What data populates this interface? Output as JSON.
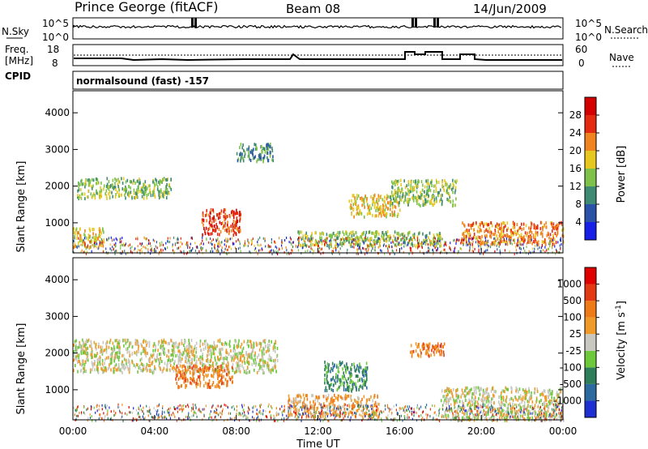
{
  "header": {
    "station": "Prince George (fitACF)",
    "beam": "Beam 08",
    "date": "14/Jun/2009"
  },
  "noise_panel": {
    "left_label": "N.Sky",
    "right_label": "N.Search",
    "left_ticks": [
      "10^5",
      "10^0"
    ],
    "right_ticks": [
      "10^5",
      "10^0"
    ]
  },
  "freq_panel": {
    "left_label_1": "Freq.",
    "left_label_2": "[MHz]",
    "right_label": "Nave",
    "left_ticks": [
      "18",
      "8"
    ],
    "right_ticks": [
      "60",
      "0"
    ],
    "cpid_label": "CPID",
    "mode_text": "normalsound (fast) -157"
  },
  "x_axis": {
    "label": "Time UT",
    "ticks": [
      "00:00",
      "04:00",
      "08:00",
      "12:00",
      "16:00",
      "20:00",
      "00:00"
    ]
  },
  "chart_data": [
    {
      "type": "heatmap",
      "name": "power-panel",
      "ylabel": "Slant Range [km]",
      "ylim": [
        180,
        4600
      ],
      "yticks": [
        1000,
        2000,
        3000,
        4000
      ],
      "xlim": [
        0,
        24
      ],
      "colorbar": {
        "label": "Power [dB]",
        "ticks": [
          "4",
          "8",
          "12",
          "16",
          "20",
          "24",
          "28"
        ],
        "colors": [
          "#1820e8",
          "#2a52a8",
          "#3f8a72",
          "#7fc24a",
          "#e6c821",
          "#ef8420",
          "#e52a12",
          "#d40000"
        ]
      },
      "regions": [
        {
          "t0": 0.2,
          "t1": 4.8,
          "r0": 1700,
          "r1": 2250,
          "level": 3
        },
        {
          "t0": 0.0,
          "t1": 1.5,
          "r0": 350,
          "r1": 900,
          "level": 4
        },
        {
          "t0": 6.3,
          "t1": 8.2,
          "r0": 700,
          "r1": 1400,
          "level": 6
        },
        {
          "t0": 8.0,
          "t1": 9.8,
          "r0": 2700,
          "r1": 3200,
          "level": 2
        },
        {
          "t0": 13.5,
          "t1": 16.0,
          "r0": 1200,
          "r1": 1800,
          "level": 4
        },
        {
          "t0": 15.5,
          "t1": 18.8,
          "r0": 1500,
          "r1": 2200,
          "level": 3
        },
        {
          "t0": 19.0,
          "t1": 24.0,
          "r0": 450,
          "r1": 1050,
          "level": 5
        },
        {
          "t0": 11.0,
          "t1": 18.0,
          "r0": 400,
          "r1": 800,
          "level": 3
        }
      ]
    },
    {
      "type": "heatmap",
      "name": "velocity-panel",
      "ylabel": "Slant Range [km]",
      "ylim": [
        180,
        4600
      ],
      "yticks": [
        1000,
        2000,
        3000,
        4000
      ],
      "xlim": [
        0,
        24
      ],
      "colorbar": {
        "label": "Velocity [m s",
        "superscript": "-1",
        "label_end": "]",
        "ticks": [
          "1000",
          "500",
          "100",
          "25",
          "-25",
          "-100",
          "-500",
          "-1000"
        ],
        "colors": [
          "#1f2fd2",
          "#2d6aa0",
          "#2e7e5a",
          "#6ec83c",
          "#c8c8c0",
          "#f09a2a",
          "#ef7a18",
          "#e43a14",
          "#e00000"
        ]
      },
      "regions": [
        {
          "t0": 0.0,
          "t1": 10.0,
          "r0": 1500,
          "r1": 2400,
          "level": 4
        },
        {
          "t0": 5.0,
          "t1": 7.8,
          "r0": 1100,
          "r1": 1700,
          "level": 6
        },
        {
          "t0": 12.3,
          "t1": 14.4,
          "r0": 1000,
          "r1": 1800,
          "level": 2
        },
        {
          "t0": 16.5,
          "t1": 18.2,
          "r0": 1900,
          "r1": 2300,
          "level": 6
        },
        {
          "t0": 18.0,
          "t1": 24.0,
          "r0": 200,
          "r1": 1100,
          "level": 4
        },
        {
          "t0": 10.5,
          "t1": 15.0,
          "r0": 300,
          "r1": 900,
          "level": 5
        }
      ]
    }
  ]
}
